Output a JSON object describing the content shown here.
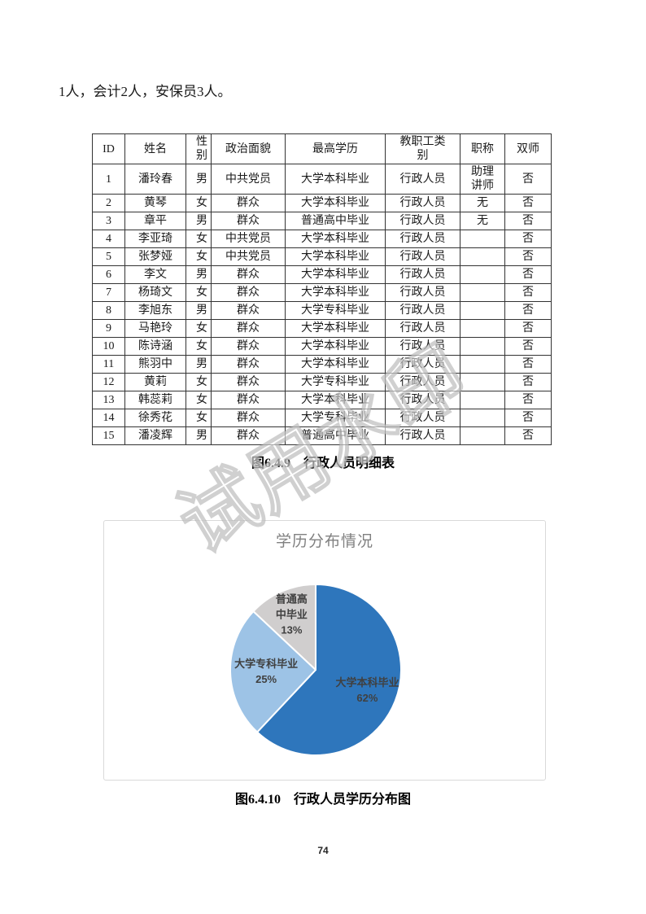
{
  "intro_text": "1人，会计2人，安保员3人。",
  "table": {
    "headers": [
      "ID",
      "姓名",
      "性别",
      "政治面貌",
      "最高学历",
      "教职工类别",
      "职称",
      "双师"
    ],
    "rows": [
      [
        "1",
        "潘玲春",
        "男",
        "中共党员",
        "大学本科毕业",
        "行政人员",
        "助理讲师",
        "否"
      ],
      [
        "2",
        "黄琴",
        "女",
        "群众",
        "大学本科毕业",
        "行政人员",
        "无",
        "否"
      ],
      [
        "3",
        "章平",
        "男",
        "群众",
        "普通高中毕业",
        "行政人员",
        "无",
        "否"
      ],
      [
        "4",
        "李亚琦",
        "女",
        "中共党员",
        "大学本科毕业",
        "行政人员",
        "",
        "否"
      ],
      [
        "5",
        "张梦娅",
        "女",
        "中共党员",
        "大学本科毕业",
        "行政人员",
        "",
        "否"
      ],
      [
        "6",
        "李文",
        "男",
        "群众",
        "大学本科毕业",
        "行政人员",
        "",
        "否"
      ],
      [
        "7",
        "杨琦文",
        "女",
        "群众",
        "大学本科毕业",
        "行政人员",
        "",
        "否"
      ],
      [
        "8",
        "李旭东",
        "男",
        "群众",
        "大学专科毕业",
        "行政人员",
        "",
        "否"
      ],
      [
        "9",
        "马艳玲",
        "女",
        "群众",
        "大学本科毕业",
        "行政人员",
        "",
        "否"
      ],
      [
        "10",
        "陈诗涵",
        "女",
        "群众",
        "大学本科毕业",
        "行政人员",
        "",
        "否"
      ],
      [
        "11",
        "熊羽中",
        "男",
        "群众",
        "大学本科毕业",
        "行政人员",
        "",
        "否"
      ],
      [
        "12",
        "黄莉",
        "女",
        "群众",
        "大学专科毕业",
        "行政人员",
        "",
        "否"
      ],
      [
        "13",
        "韩蕊莉",
        "女",
        "群众",
        "大学本科毕业",
        "行政人员",
        "",
        "否"
      ],
      [
        "14",
        "徐秀花",
        "女",
        "群众",
        "大学专科毕业",
        "行政人员",
        "",
        "否"
      ],
      [
        "15",
        "潘凌辉",
        "男",
        "群众",
        "普通高中毕业",
        "行政人员",
        "",
        "否"
      ]
    ],
    "caption": "图6.4.9　行政人员明细表"
  },
  "chart_data": {
    "type": "pie",
    "title": "学历分布情况",
    "caption": "图6.4.10　行政人员学历分布图",
    "legend_position": "none",
    "start_angle": "top",
    "direction": "clockwise",
    "slices": [
      {
        "label": "大学本科毕业",
        "value": 62,
        "pct_label": "62%",
        "color": "#2E76BC",
        "label_lines": [
          "大学本科毕业"
        ],
        "label_radius": 0.65
      },
      {
        "label": "大学专科毕业",
        "value": 25,
        "pct_label": "25%",
        "color": "#9DC3E6",
        "label_lines": [
          "大学专科毕业"
        ],
        "label_radius": 0.58
      },
      {
        "label": "普通高中毕业",
        "value": 13,
        "pct_label": "13%",
        "color": "#D0CECE",
        "label_lines": [
          "普通高",
          "中毕业"
        ],
        "label_radius": 0.71
      }
    ]
  },
  "watermark_text": "试用水印",
  "page_number": "74"
}
